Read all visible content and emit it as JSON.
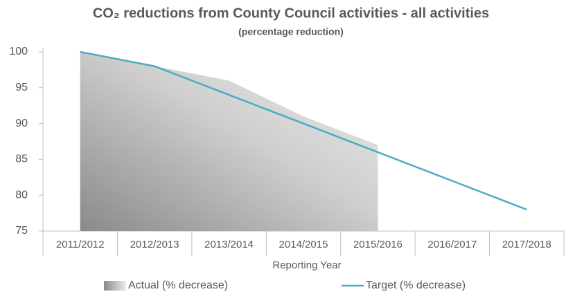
{
  "chart_data": {
    "type": "area_line",
    "title": "CO₂ reductions from County Council activities - all activities",
    "subtitle": "(percentage reduction)",
    "x_label": "Reporting Year",
    "categories": [
      "2011/2012",
      "2012/2013",
      "2013/2014",
      "2014/2015",
      "2015/2016",
      "2016/2017",
      "2017/2018"
    ],
    "series": [
      {
        "name": "Actual (% decrease)",
        "type": "area",
        "color": "#8c8c8c",
        "values": [
          100,
          98,
          96,
          91,
          87,
          null,
          null
        ]
      },
      {
        "name": "Target (% decrease)",
        "type": "line",
        "color": "#4bacc6",
        "values": [
          100,
          98,
          94,
          90,
          86,
          82,
          78
        ]
      }
    ],
    "ylim": [
      75,
      100
    ],
    "yticks": [
      75,
      80,
      85,
      90,
      95,
      100
    ],
    "legend": "bottom"
  }
}
